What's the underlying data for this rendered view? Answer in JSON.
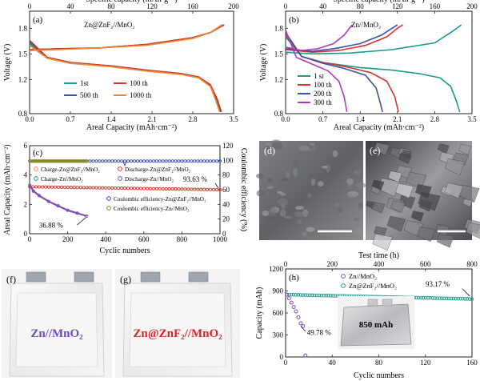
{
  "figure": {
    "caption_words": "",
    "sem_image_d": "d",
    "sem_image_e": "e"
  },
  "chart_data": [
    {
      "id": "a",
      "panel_label": "(a)",
      "type": "line",
      "title": "Zn@ZnF₂//MnO₂",
      "xlabel": "Areal Capacity (mAh·cm⁻²)",
      "x2label": "Specific capacity (mAh·g⁻¹)",
      "ylabel": "Voltage (V)",
      "xlim": [
        0,
        3.5
      ],
      "x2lim": [
        0,
        200
      ],
      "ylim": [
        0.8,
        2.0
      ],
      "xticks": [
        "0.0",
        "0.7",
        "1.4",
        "2.1",
        "2.8",
        "3.5"
      ],
      "x2ticks": [
        "0",
        "40",
        "80",
        "120",
        "160",
        "200"
      ],
      "yticks": [
        "0.8",
        "1.2",
        "1.5",
        "1.8"
      ],
      "ytick_values": [
        0.8,
        1.2,
        1.5,
        1.8
      ],
      "legend": [
        "1st",
        "500 th",
        "100 th",
        "1000 th"
      ],
      "series": [
        {
          "name": "1st",
          "color": "#1a9a8a",
          "charge": [
            [
              0,
              1.54
            ],
            [
              0.5,
              1.56
            ],
            [
              1.2,
              1.57
            ],
            [
              2.0,
              1.61
            ],
            [
              2.8,
              1.69
            ],
            [
              3.1,
              1.75
            ],
            [
              3.3,
              1.84
            ]
          ],
          "discharge": [
            [
              0,
              1.62
            ],
            [
              0.3,
              1.45
            ],
            [
              0.7,
              1.39
            ],
            [
              1.4,
              1.35
            ],
            [
              2.0,
              1.3
            ],
            [
              2.6,
              1.26
            ],
            [
              2.9,
              1.22
            ],
            [
              3.1,
              1.12
            ],
            [
              3.2,
              0.95
            ],
            [
              3.28,
              0.82
            ]
          ]
        },
        {
          "name": "500 th",
          "color": "#3a4fb0",
          "charge": [
            [
              0,
              1.55
            ],
            [
              0.5,
              1.56
            ],
            [
              1.2,
              1.57
            ],
            [
              2.0,
              1.61
            ],
            [
              2.8,
              1.69
            ],
            [
              3.1,
              1.75
            ],
            [
              3.32,
              1.84
            ]
          ],
          "discharge": [
            [
              0,
              1.64
            ],
            [
              0.3,
              1.46
            ],
            [
              0.7,
              1.4
            ],
            [
              1.4,
              1.36
            ],
            [
              2.0,
              1.31
            ],
            [
              2.6,
              1.27
            ],
            [
              2.9,
              1.23
            ],
            [
              3.1,
              1.13
            ],
            [
              3.2,
              0.97
            ],
            [
              3.27,
              0.82
            ]
          ]
        },
        {
          "name": "100 th",
          "color": "#d6352b",
          "charge": [
            [
              0,
              1.55
            ],
            [
              0.5,
              1.56
            ],
            [
              1.2,
              1.57
            ],
            [
              2.0,
              1.61
            ],
            [
              2.8,
              1.69
            ],
            [
              3.1,
              1.75
            ],
            [
              3.34,
              1.84
            ]
          ],
          "discharge": [
            [
              0,
              1.66
            ],
            [
              0.3,
              1.46
            ],
            [
              0.7,
              1.4
            ],
            [
              1.4,
              1.36
            ],
            [
              2.0,
              1.31
            ],
            [
              2.6,
              1.27
            ],
            [
              2.9,
              1.23
            ],
            [
              3.1,
              1.14
            ],
            [
              3.22,
              0.97
            ],
            [
              3.29,
              0.82
            ]
          ]
        },
        {
          "name": "1000 th",
          "color": "#f08a2c",
          "charge": [
            [
              0,
              1.54
            ],
            [
              0.5,
              1.55
            ],
            [
              1.2,
              1.57
            ],
            [
              2.0,
              1.6
            ],
            [
              2.8,
              1.68
            ],
            [
              3.1,
              1.75
            ],
            [
              3.3,
              1.84
            ]
          ],
          "discharge": [
            [
              0,
              1.6
            ],
            [
              0.3,
              1.45
            ],
            [
              0.7,
              1.39
            ],
            [
              1.4,
              1.35
            ],
            [
              2.0,
              1.3
            ],
            [
              2.6,
              1.26
            ],
            [
              2.9,
              1.22
            ],
            [
              3.1,
              1.12
            ],
            [
              3.2,
              0.95
            ],
            [
              3.26,
              0.82
            ]
          ]
        }
      ]
    },
    {
      "id": "b",
      "panel_label": "(b)",
      "type": "line",
      "title": "Zn//MnO₂",
      "xlabel": "Areal Capacity (mAh·cm⁻²)",
      "x2label": "Specific capacity (mAh·g⁻¹)",
      "ylabel": "Voltage (V)",
      "xlim": [
        0,
        3.5
      ],
      "x2lim": [
        0,
        200
      ],
      "ylim": [
        0.8,
        2.0
      ],
      "xticks": [
        "0.0",
        "0.7",
        "1.4",
        "2.1",
        "2.8",
        "3.5"
      ],
      "x2ticks": [
        "0",
        "40",
        "80",
        "120",
        "160",
        "200"
      ],
      "yticks": [
        "0.8",
        "1.2",
        "1.5",
        "1.8"
      ],
      "ytick_values": [
        0.8,
        1.2,
        1.5,
        1.8
      ],
      "legend": [
        "1 st",
        "100 th",
        "200 th",
        "300 th"
      ],
      "series": [
        {
          "name": "1 st",
          "color": "#1a9a8a",
          "charge": [
            [
              0,
              1.52
            ],
            [
              0.5,
              1.5
            ],
            [
              1.2,
              1.51
            ],
            [
              2.0,
              1.55
            ],
            [
              2.8,
              1.63
            ],
            [
              3.1,
              1.75
            ],
            [
              3.3,
              1.84
            ]
          ],
          "discharge": [
            [
              0,
              1.7
            ],
            [
              0.3,
              1.47
            ],
            [
              0.7,
              1.4
            ],
            [
              1.4,
              1.34
            ],
            [
              2.0,
              1.31
            ],
            [
              2.5,
              1.27
            ],
            [
              2.9,
              1.22
            ],
            [
              3.1,
              1.12
            ],
            [
              3.2,
              0.96
            ],
            [
              3.27,
              0.82
            ]
          ]
        },
        {
          "name": "100 th",
          "color": "#d6352b",
          "charge": [
            [
              0,
              1.55
            ],
            [
              0.5,
              1.52
            ],
            [
              1.0,
              1.54
            ],
            [
              1.5,
              1.6
            ],
            [
              1.9,
              1.7
            ],
            [
              2.1,
              1.8
            ],
            [
              2.2,
              1.84
            ]
          ],
          "discharge": [
            [
              0,
              1.72
            ],
            [
              0.3,
              1.47
            ],
            [
              0.7,
              1.4
            ],
            [
              1.2,
              1.34
            ],
            [
              1.6,
              1.28
            ],
            [
              1.9,
              1.18
            ],
            [
              2.05,
              1.0
            ],
            [
              2.12,
              0.82
            ]
          ]
        },
        {
          "name": "200 th",
          "color": "#3a4fb0",
          "charge": [
            [
              0,
              1.56
            ],
            [
              0.5,
              1.53
            ],
            [
              0.9,
              1.56
            ],
            [
              1.4,
              1.62
            ],
            [
              1.8,
              1.72
            ],
            [
              2.0,
              1.8
            ],
            [
              2.1,
              1.84
            ]
          ],
          "discharge": [
            [
              0,
              1.75
            ],
            [
              0.3,
              1.47
            ],
            [
              0.7,
              1.39
            ],
            [
              1.1,
              1.33
            ],
            [
              1.5,
              1.25
            ],
            [
              1.7,
              1.1
            ],
            [
              1.78,
              0.92
            ],
            [
              1.82,
              0.82
            ]
          ]
        },
        {
          "name": "300 th",
          "color": "#b53ab8",
          "charge": [
            [
              0,
              1.58
            ],
            [
              0.3,
              1.54
            ],
            [
              0.6,
              1.56
            ],
            [
              0.9,
              1.62
            ],
            [
              1.1,
              1.72
            ],
            [
              1.2,
              1.8
            ],
            [
              1.25,
              1.84
            ]
          ],
          "discharge": [
            [
              0,
              1.78
            ],
            [
              0.2,
              1.46
            ],
            [
              0.5,
              1.38
            ],
            [
              0.8,
              1.3
            ],
            [
              1.0,
              1.18
            ],
            [
              1.1,
              1.0
            ],
            [
              1.15,
              0.82
            ]
          ]
        }
      ]
    },
    {
      "id": "c",
      "panel_label": "(c)",
      "type": "scatter",
      "xlabel": "Cyclic numbers",
      "ylabel": "Areal Capacity (mAh·cm⁻²)",
      "y2label": "Coulombic efficiency (%)",
      "xlim": [
        0,
        1000
      ],
      "ylim": [
        0,
        6
      ],
      "y2lim": [
        0,
        120
      ],
      "xticks": [
        "0",
        "200",
        "400",
        "600",
        "800",
        "1000"
      ],
      "yticks": [
        "0",
        "2",
        "4",
        "6"
      ],
      "y2ticks": [
        "0",
        "20",
        "40",
        "60",
        "80",
        "100",
        "120"
      ],
      "annotations": [
        "93.63 %",
        "36.88 %"
      ],
      "legend": [
        {
          "label": "Charge-Zn@ZnF₂//MnO₂",
          "color": "#f08a2c"
        },
        {
          "label": "Discharge-Zn@ZnF₂//MnO₂",
          "color": "#d6352b"
        },
        {
          "label": "Charge-Zn//MnO₂",
          "color": "#1a9a8a"
        },
        {
          "label": "Discharge-Zn//MnO₂",
          "color": "#7a4fb5"
        },
        {
          "label": "Coulombic efficiency-Zn@ZnF₂//MnO₂",
          "color": "#3a4fb0"
        },
        {
          "label": "Coulombic efficiency-Zn//MnO₂",
          "color": "#8a8a2a"
        }
      ],
      "series": [
        {
          "name": "Zn@ZnF2 capacity",
          "color": "#d6352b",
          "axis": "left",
          "x_start": 1,
          "x_end": 1000,
          "y_start": 3.2,
          "y_end": 3.0
        },
        {
          "name": "Zn@ZnF2 CE",
          "color": "#3a4fb0",
          "axis": "right",
          "x_start": 1,
          "x_end": 1000,
          "y_start": 99,
          "y_end": 99
        },
        {
          "name": "Zn capacity",
          "color": "#7a4fb5",
          "axis": "left",
          "points": [
            [
              1,
              3.3
            ],
            [
              20,
              2.9
            ],
            [
              50,
              2.6
            ],
            [
              100,
              2.2
            ],
            [
              150,
              1.9
            ],
            [
              200,
              1.6
            ],
            [
              250,
              1.4
            ],
            [
              300,
              1.2
            ]
          ]
        },
        {
          "name": "Zn CE",
          "color": "#8a8a2a",
          "axis": "right",
          "x_start": 1,
          "x_end": 300,
          "y_start": 99,
          "y_end": 99
        }
      ]
    },
    {
      "id": "h",
      "panel_label": "(h)",
      "type": "scatter",
      "xlabel": "Cyclic numbers",
      "x2label": "Test time (h)",
      "ylabel": "Capacity (mAh)",
      "xlim": [
        0,
        160
      ],
      "x2lim": [
        0,
        800
      ],
      "ylim": [
        0,
        1200
      ],
      "xticks": [
        "0",
        "40",
        "80",
        "120",
        "160"
      ],
      "x2ticks": [
        "0",
        "200",
        "400",
        "600",
        "800"
      ],
      "yticks": [
        "0",
        "300",
        "600",
        "900",
        "1200"
      ],
      "annotations": [
        "93.17 %",
        "49.78 %",
        "850 mAh"
      ],
      "legend": [
        "Zn//MnO₂",
        "Zn@ZnF₂//MnO₂"
      ],
      "series": [
        {
          "name": "Zn//MnO2",
          "color": "#7a4fb5",
          "points": [
            [
              1,
              850
            ],
            [
              3,
              800
            ],
            [
              5,
              740
            ],
            [
              7,
              680
            ],
            [
              9,
              620
            ],
            [
              11,
              540
            ],
            [
              13,
              460
            ],
            [
              15,
              420
            ],
            [
              17,
              20
            ]
          ]
        },
        {
          "name": "Zn@ZnF2//MnO2",
          "color": "#1a9a8a",
          "x_start": 1,
          "x_end": 160,
          "y_start": 850,
          "y_end": 790
        }
      ]
    }
  ],
  "photos": {
    "f": {
      "panel_label": "(f)",
      "label": "Zn//MnO₂",
      "color": "#6a4bbf"
    },
    "g": {
      "panel_label": "(g)",
      "label": "Zn@ZnF₂//MnO₂",
      "color": "#d82424"
    }
  },
  "sem": {
    "d": {
      "panel_label": "(d)"
    },
    "e": {
      "panel_label": "(e)"
    }
  }
}
